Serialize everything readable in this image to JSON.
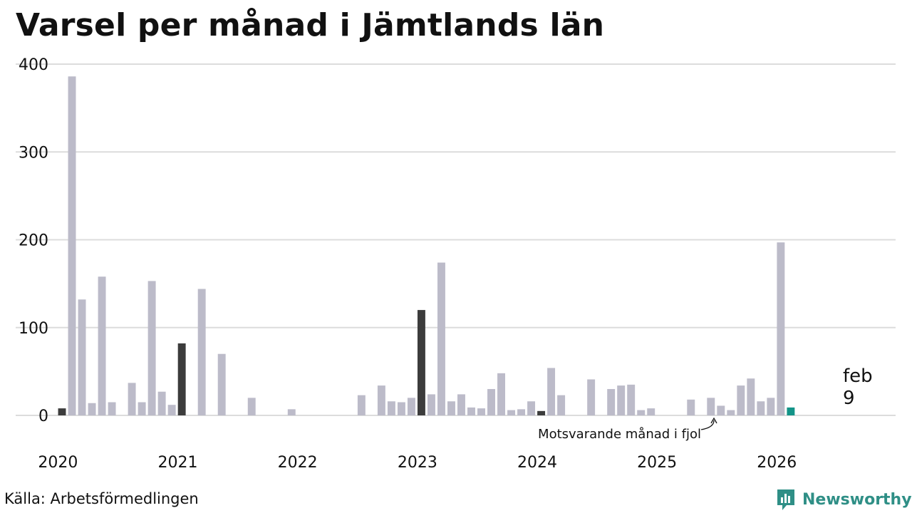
{
  "title": "Varsel per månad i Jämtlands län",
  "source": "Källa: Arbetsförmedlingen",
  "brand": {
    "name": "Newsworthy",
    "icon": "newsworthy-logo-icon"
  },
  "colors": {
    "bar": "#bcbbc9",
    "highlight_same_month": "#3c3c3c",
    "current": "#139488",
    "grid": "#dcdcdc",
    "brand": "#2f8f86"
  },
  "chart_data": {
    "type": "bar",
    "title": "Varsel per månad i Jämtlands län",
    "xlabel": "",
    "ylabel": "",
    "ylim": [
      0,
      400
    ],
    "yticks": [
      0,
      100,
      200,
      300,
      400
    ],
    "year_labels": [
      "2020",
      "2021",
      "2022",
      "2023",
      "2024",
      "2025",
      "2026"
    ],
    "x_range_months": [
      0,
      84
    ],
    "grid": true,
    "series": [
      {
        "name": "Varsel",
        "start": "2020-01",
        "values": [
          8,
          386,
          132,
          14,
          158,
          15,
          0,
          37,
          15,
          153,
          27,
          12,
          82,
          0,
          144,
          0,
          70,
          0,
          0,
          20,
          0,
          0,
          0,
          7,
          0,
          0,
          0,
          0,
          0,
          0,
          23,
          0,
          34,
          16,
          15,
          20,
          120,
          24,
          174,
          16,
          24,
          9,
          8,
          30,
          48,
          6,
          7,
          16,
          5,
          54,
          23,
          0,
          0,
          41,
          0,
          30,
          34,
          35,
          6,
          8,
          0,
          0,
          0,
          18,
          0,
          20,
          11,
          6,
          34,
          42,
          16,
          20,
          197,
          9
        ]
      }
    ],
    "highlight_indices": [
      0,
      12,
      36,
      48
    ],
    "current_index": 73,
    "annotations": {
      "current": {
        "month": "feb",
        "value": "9"
      },
      "previous_year_note": "Motsvarande månad i fjol"
    }
  }
}
